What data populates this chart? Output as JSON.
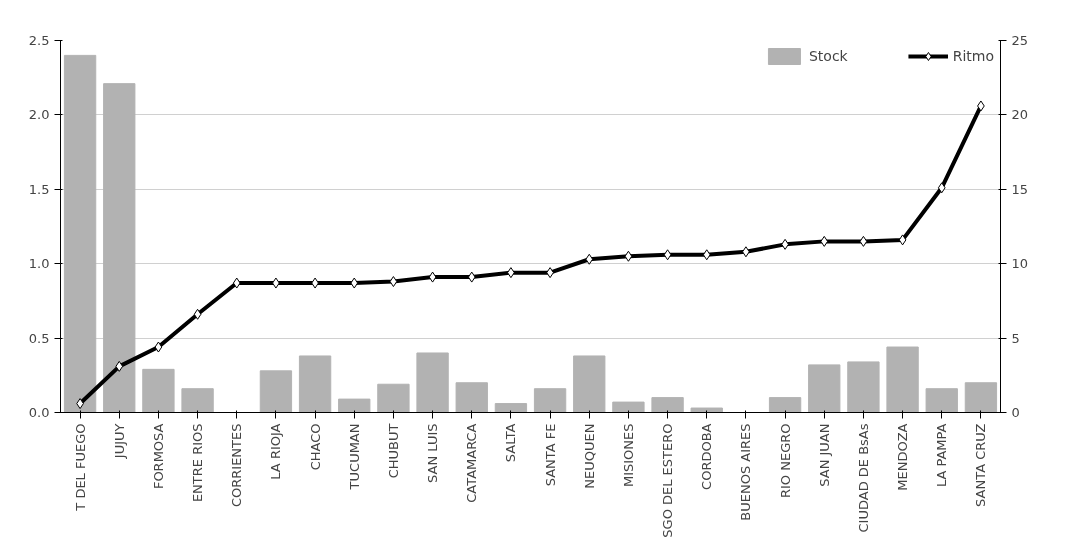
{
  "chart_data": {
    "type": "bar",
    "categories": [
      "T DEL FUEGO",
      "JUJUY",
      "FORMOSA",
      "ENTRE RIOS",
      "CORRIENTES",
      "LA RIOJA",
      "CHACO",
      "TUCUMAN",
      "CHUBUT",
      "SAN LUIS",
      "CATAMARCA",
      "SALTA",
      "SANTA FE",
      "NEUQUEN",
      "MISIONES",
      "SGO DEL ESTERO",
      "CORDOBA",
      "BUENOS AIRES",
      "RIO NEGRO",
      "SAN JUAN",
      "CIUDAD DE BsAs",
      "MENDOZA",
      "LA PAMPA",
      "SANTA CRUZ"
    ],
    "series": [
      {
        "name": "Stock",
        "color": "#b2b2b2",
        "values": [
          2.4,
          2.21,
          0.29,
          0.16,
          0,
          0.28,
          0.38,
          0.09,
          0.19,
          0.4,
          0.2,
          0.06,
          0.16,
          0.38,
          0.07,
          0.1,
          0.03,
          0,
          0.1,
          0.32,
          0.34,
          0.44,
          0.16,
          0.2
        ]
      },
      {
        "name": "Ritmo",
        "type": "line",
        "axis": "y2",
        "color": "#000000",
        "marker": "diamond",
        "values": [
          0.6,
          3.1,
          4.4,
          6.6,
          8.7,
          8.7,
          8.7,
          8.7,
          8.8,
          9.1,
          9.1,
          9.4,
          9.4,
          10.3,
          10.5,
          10.6,
          10.6,
          10.8,
          11.3,
          11.5,
          11.5,
          11.6,
          15.1,
          20.6
        ]
      }
    ],
    "ylim": [
      0,
      2.5
    ],
    "yticks": [
      {
        "value": 0,
        "label": "0.0"
      },
      {
        "value": 0.5,
        "label": "0.5"
      },
      {
        "value": 1,
        "label": "1.0"
      },
      {
        "value": 1.5,
        "label": "1.5"
      },
      {
        "value": 2,
        "label": "2.0"
      },
      {
        "value": 2.5,
        "label": "2.5"
      }
    ],
    "y2lim": [
      0,
      25
    ],
    "y2ticks": [
      0,
      5,
      10,
      15,
      20,
      25
    ],
    "grid": "y",
    "legend": "top right"
  }
}
